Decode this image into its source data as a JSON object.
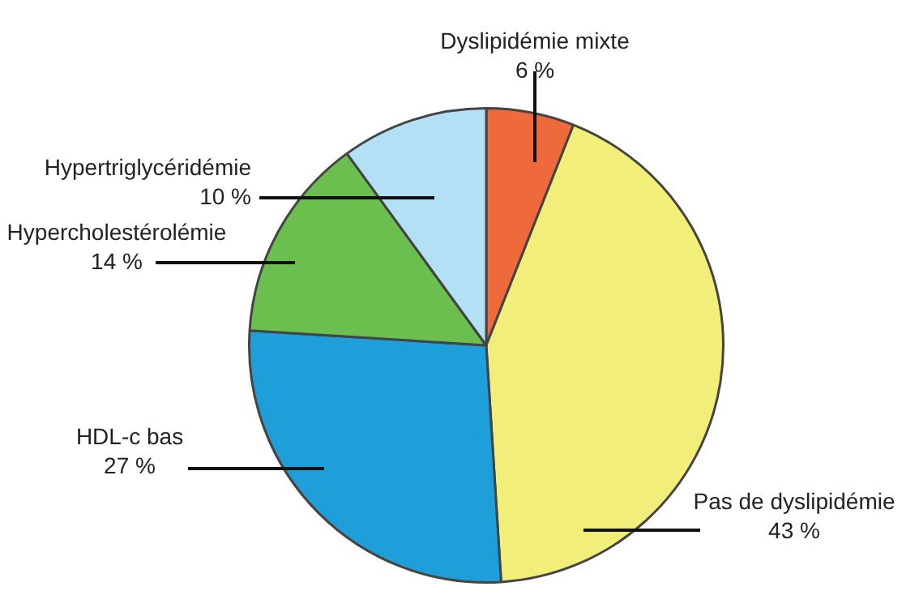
{
  "chart_data": {
    "type": "pie",
    "categories": [
      "Dyslipidémie mixte",
      "Pas de dyslipidémie",
      "HDL-c bas",
      "Hypercholestérolémie",
      "Hypertriglycéridémie"
    ],
    "values": [
      6,
      43,
      27,
      14,
      10
    ],
    "value_labels": [
      "6 %",
      "43 %",
      "27 %",
      "14 %",
      "10 %"
    ],
    "colors": [
      "#ee6a3c",
      "#f2ee7a",
      "#1f9fd9",
      "#6bbf4f",
      "#b3e0f5"
    ],
    "legend": false
  }
}
